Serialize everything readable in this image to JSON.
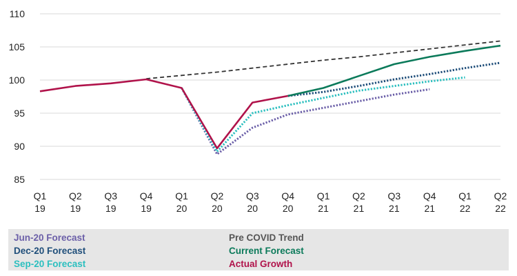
{
  "chart_data": {
    "type": "line",
    "categories": [
      [
        "Q1",
        "19"
      ],
      [
        "Q2",
        "19"
      ],
      [
        "Q3",
        "19"
      ],
      [
        "Q4",
        "19"
      ],
      [
        "Q1",
        "20"
      ],
      [
        "Q2",
        "20"
      ],
      [
        "Q3",
        "20"
      ],
      [
        "Q4",
        "20"
      ],
      [
        "Q1",
        "21"
      ],
      [
        "Q2",
        "21"
      ],
      [
        "Q3",
        "21"
      ],
      [
        "Q4",
        "21"
      ],
      [
        "Q1",
        "22"
      ],
      [
        "Q2",
        "22"
      ]
    ],
    "ylim": [
      85,
      110
    ],
    "yticks": [
      85,
      90,
      95,
      100,
      105,
      110
    ],
    "grid": "horizontal",
    "legend_position": "bottom",
    "series": [
      {
        "name": "Pre COVID Trend",
        "color": "#333333",
        "style": "dashed",
        "values": [
          null,
          null,
          null,
          100.2,
          100.7,
          101.2,
          101.8,
          102.4,
          103.0,
          103.5,
          104.1,
          104.7,
          105.3,
          105.9
        ]
      },
      {
        "name": "Jun-20 Forecast",
        "color": "#6b5fa8",
        "style": "dotted",
        "values": [
          null,
          null,
          null,
          null,
          98.8,
          88.8,
          92.8,
          94.8,
          95.8,
          96.8,
          97.8,
          98.6,
          null,
          null
        ]
      },
      {
        "name": "Sep-20 Forecast",
        "color": "#2bbfbf",
        "style": "dotted",
        "values": [
          null,
          null,
          null,
          null,
          98.8,
          89.2,
          95.0,
          96.2,
          97.3,
          98.4,
          99.1,
          99.8,
          100.4,
          null
        ]
      },
      {
        "name": "Dec-20 Forecast",
        "color": "#1f4e7a",
        "style": "dotted",
        "values": [
          null,
          null,
          null,
          null,
          null,
          null,
          null,
          97.6,
          98.2,
          99.1,
          100.1,
          100.9,
          101.8,
          102.6
        ]
      },
      {
        "name": "Current Forecast",
        "color": "#0b7a5a",
        "style": "solid",
        "values": [
          null,
          null,
          null,
          null,
          null,
          null,
          null,
          97.6,
          98.8,
          100.6,
          102.4,
          103.5,
          104.4,
          105.2
        ]
      },
      {
        "name": "Actual Growth",
        "color": "#b0124a",
        "style": "solid",
        "values": [
          98.3,
          99.1,
          99.5,
          100.1,
          98.8,
          89.7,
          96.6,
          97.6,
          null,
          null,
          null,
          null,
          null,
          null
        ]
      }
    ]
  },
  "legend": {
    "col1": [
      {
        "label": "Jun-20 Forecast",
        "color": "#6b5fa8"
      },
      {
        "label": "Dec-20 Forecast",
        "color": "#1f4e7a"
      },
      {
        "label": "Sep-20 Forecast",
        "color": "#2bbfbf"
      }
    ],
    "col2": [
      {
        "label": "Pre COVID Trend",
        "color": "#555555"
      },
      {
        "label": "Current Forecast",
        "color": "#0b7a5a"
      },
      {
        "label": "Actual Growth",
        "color": "#b0124a"
      }
    ]
  }
}
